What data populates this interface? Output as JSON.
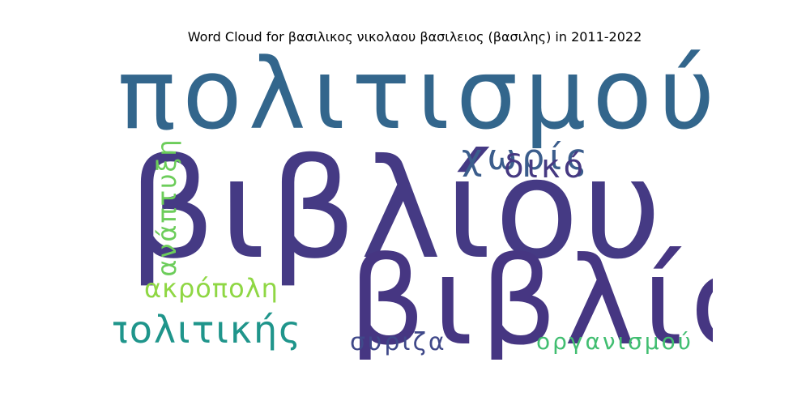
{
  "title": "Word Cloud for βασιλικος νικολαου βασιλειος (βασιλης) in 2011-2022",
  "words": [
    {
      "text": "πολιτισμού",
      "color": "#33668c"
    },
    {
      "text": "βιβλίου",
      "color": "#453a84"
    },
    {
      "text": "βιβλίο",
      "color": "#463682"
    },
    {
      "text": "πολιτικής",
      "color": "#1f958b"
    },
    {
      "text": "χωρίς",
      "color": "#3b5d8c"
    },
    {
      "text": "δικό",
      "color": "#463982"
    },
    {
      "text": "ακρόπολη",
      "color": "#8fd744"
    },
    {
      "text": "συριζα",
      "color": "#3f4889"
    },
    {
      "text": "οργανισμού",
      "color": "#41be71"
    },
    {
      "text": "ανάπτυξη",
      "color": "#6ccd5a"
    }
  ]
}
